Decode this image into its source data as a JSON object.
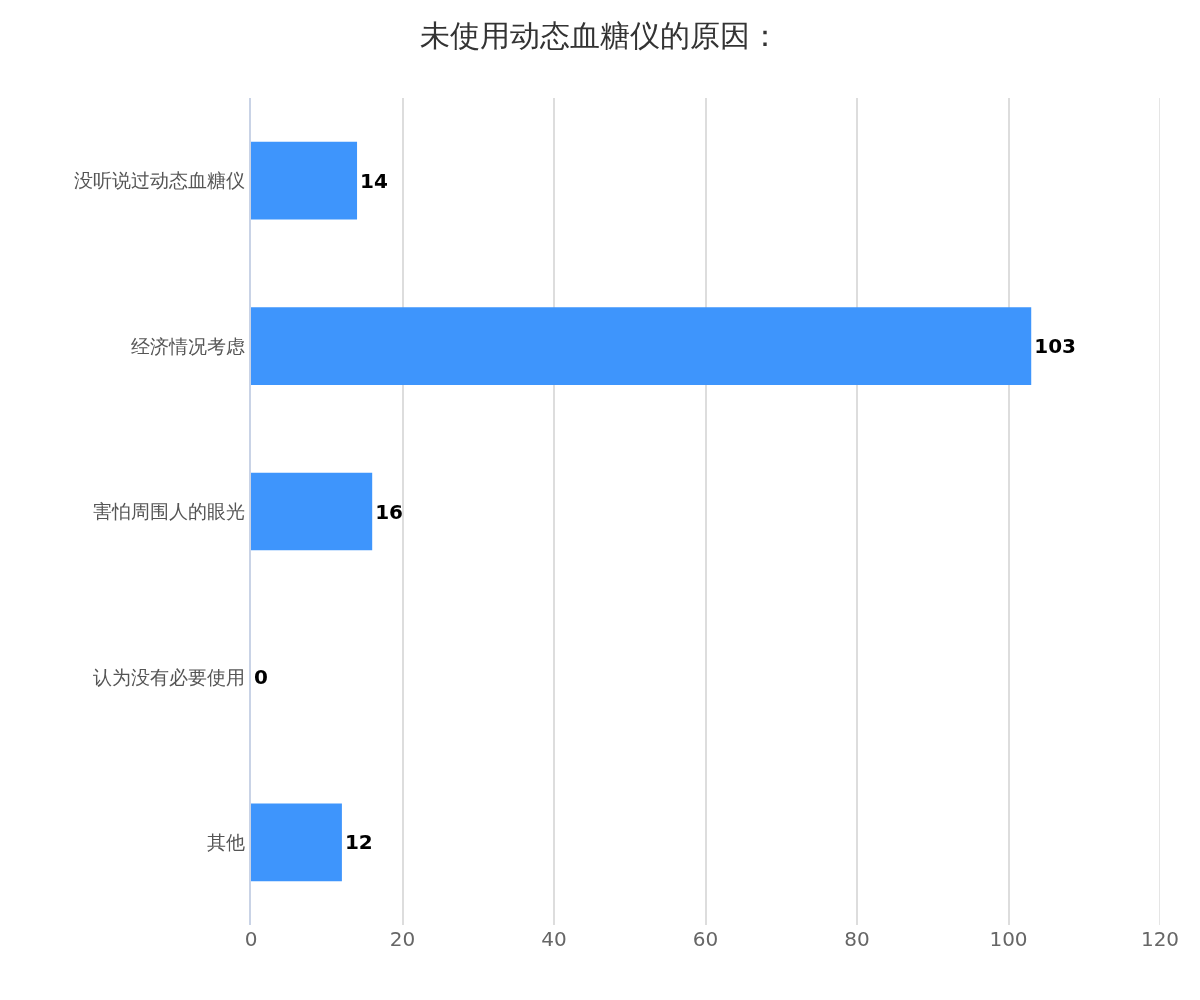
{
  "chart_data": {
    "type": "bar",
    "orientation": "horizontal",
    "title": "未使用动态血糖仪的原因：",
    "categories": [
      "没听说过动态血糖仪",
      "经济情况考虑",
      "害怕周围人的眼光",
      "认为没有必要使用",
      "其他"
    ],
    "values": [
      14,
      103,
      16,
      0,
      12
    ],
    "color": "#3e95fc",
    "xlim": [
      0,
      120
    ],
    "xticks": [
      0,
      20,
      40,
      60,
      80,
      100,
      120
    ],
    "grid": "x",
    "data_labels": true
  }
}
